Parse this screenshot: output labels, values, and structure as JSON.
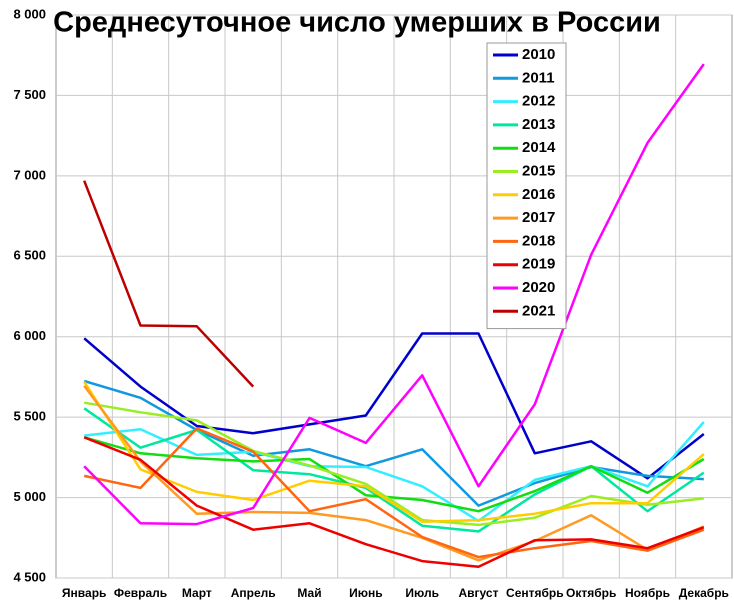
{
  "chart_data": {
    "type": "line",
    "title": "Среднесуточное число умерших в России",
    "categories": [
      "Январь",
      "Февраль",
      "Март",
      "Апрель",
      "Май",
      "Июнь",
      "Июль",
      "Август",
      "Сентябрь",
      "Октябрь",
      "Ноябрь",
      "Декабрь"
    ],
    "series": [
      {
        "name": "2010",
        "color": "#0000cc",
        "values": [
          5990,
          5690,
          5445,
          5400,
          5455,
          5510,
          6020,
          6020,
          5275,
          5350,
          5120,
          5395
        ]
      },
      {
        "name": "2011",
        "color": "#1199dd",
        "values": [
          5725,
          5620,
          5420,
          5260,
          5300,
          5195,
          5300,
          4950,
          5090,
          5190,
          5135,
          5115
        ]
      },
      {
        "name": "2012",
        "color": "#33eeff",
        "values": [
          5385,
          5425,
          5265,
          5285,
          5195,
          5190,
          5070,
          4855,
          5110,
          5195,
          5070,
          5470
        ]
      },
      {
        "name": "2013",
        "color": "#00e8a0",
        "values": [
          5555,
          5310,
          5420,
          5170,
          5145,
          5060,
          4825,
          4790,
          5020,
          5195,
          4915,
          5155
        ]
      },
      {
        "name": "2014",
        "color": "#11dd11",
        "values": [
          5375,
          5275,
          5245,
          5225,
          5240,
          5015,
          4985,
          4915,
          5040,
          5195,
          5030,
          5240
        ]
      },
      {
        "name": "2015",
        "color": "#99ee22",
        "values": [
          5590,
          5530,
          5480,
          5290,
          5200,
          5085,
          4860,
          4830,
          4875,
          5010,
          4955,
          4995
        ]
      },
      {
        "name": "2016",
        "color": "#ffcc00",
        "values": [
          5720,
          5175,
          5035,
          4985,
          5105,
          5070,
          4850,
          4860,
          4900,
          4965,
          4965,
          5270
        ]
      },
      {
        "name": "2017",
        "color": "#ff9922",
        "values": [
          5695,
          5225,
          4900,
          4910,
          4905,
          4860,
          4750,
          4610,
          4730,
          4890,
          4675,
          4820
        ]
      },
      {
        "name": "2018",
        "color": "#ff6611",
        "values": [
          5135,
          5060,
          5430,
          5285,
          4915,
          4990,
          4755,
          4630,
          4685,
          4730,
          4670,
          4800
        ]
      },
      {
        "name": "2019",
        "color": "#ee0000",
        "values": [
          5375,
          5235,
          4950,
          4800,
          4840,
          4710,
          4605,
          4570,
          4735,
          4740,
          4685,
          4815
        ]
      },
      {
        "name": "2020",
        "color": "#ff00ff",
        "values": [
          5195,
          4840,
          4835,
          4935,
          5495,
          5340,
          5760,
          5070,
          5580,
          6510,
          7205,
          7695
        ]
      },
      {
        "name": "2021",
        "color": "#bb0000",
        "values": [
          6970,
          6070,
          6065,
          5690,
          null,
          null,
          null,
          null,
          null,
          null,
          null,
          null
        ]
      }
    ],
    "ylim": [
      4500,
      8000
    ],
    "yticks": [
      {
        "value": 4500,
        "label": "4 500"
      },
      {
        "value": 5000,
        "label": "5 000"
      },
      {
        "value": 5500,
        "label": "5 500"
      },
      {
        "value": 6000,
        "label": "6 000"
      },
      {
        "value": 6500,
        "label": "6 500"
      },
      {
        "value": 7000,
        "label": "7 000"
      },
      {
        "value": 7500,
        "label": "7 500"
      },
      {
        "value": 8000,
        "label": "8 000"
      }
    ],
    "grid": true
  }
}
